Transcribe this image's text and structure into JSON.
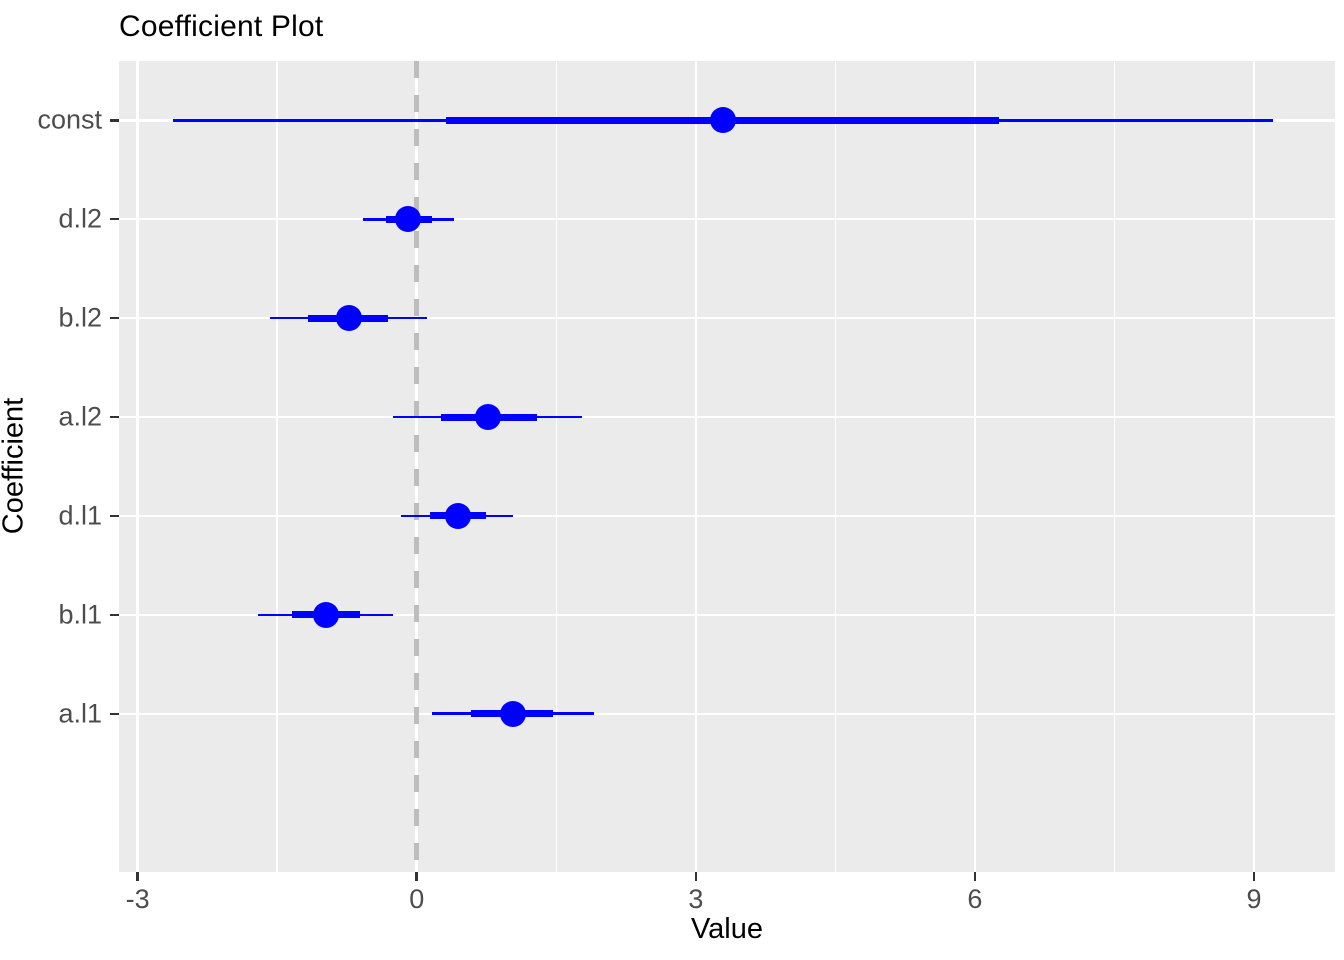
{
  "chart_data": {
    "type": "scatter",
    "subtype": "coefficient-pointrange",
    "title": "Coefficient Plot",
    "xlabel": "Value",
    "ylabel": "Coefficient",
    "xlim": [
      -3.2,
      9.87
    ],
    "x_breaks": [
      -3,
      0,
      3,
      6,
      9
    ],
    "x_tick_labels": [
      "-3",
      "0",
      "3",
      "6",
      "9"
    ],
    "x_minor_breaks": [
      -1.5,
      1.5,
      4.5,
      7.5
    ],
    "categories_top_to_bottom": [
      "const",
      "d.l2",
      "b.l2",
      "a.l2",
      "d.l1",
      "b.l1",
      "a.l1"
    ],
    "series": [
      {
        "name": "const",
        "estimate": 3.29,
        "inner_ci": [
          0.32,
          6.26
        ],
        "outer_ci": [
          -2.62,
          9.2
        ]
      },
      {
        "name": "d.l2",
        "estimate": -0.09,
        "inner_ci": [
          -0.33,
          0.16
        ],
        "outer_ci": [
          -0.58,
          0.4
        ]
      },
      {
        "name": "b.l2",
        "estimate": -0.73,
        "inner_ci": [
          -1.17,
          -0.31
        ],
        "outer_ci": [
          -1.58,
          0.11
        ]
      },
      {
        "name": "a.l2",
        "estimate": 0.77,
        "inner_ci": [
          0.26,
          1.29
        ],
        "outer_ci": [
          -0.26,
          1.78
        ]
      },
      {
        "name": "d.l1",
        "estimate": 0.44,
        "inner_ci": [
          0.14,
          0.74
        ],
        "outer_ci": [
          -0.17,
          1.03
        ]
      },
      {
        "name": "b.l1",
        "estimate": -0.97,
        "inner_ci": [
          -1.34,
          -0.61
        ],
        "outer_ci": [
          -1.71,
          -0.25
        ]
      },
      {
        "name": "a.l1",
        "estimate": 1.03,
        "inner_ci": [
          0.58,
          1.47
        ],
        "outer_ci": [
          0.16,
          1.91
        ]
      }
    ],
    "reference_line": {
      "x": 0,
      "style": "dashed",
      "color": "#BDBDBD"
    },
    "colors": {
      "point": "#0000FF",
      "panel_background": "#EBEBEB",
      "grid": "#FFFFFF",
      "tick_text": "#4D4D4D",
      "tick_mark": "#333333",
      "title_text": "#000000"
    },
    "grid": "on",
    "legend_position": "none"
  }
}
